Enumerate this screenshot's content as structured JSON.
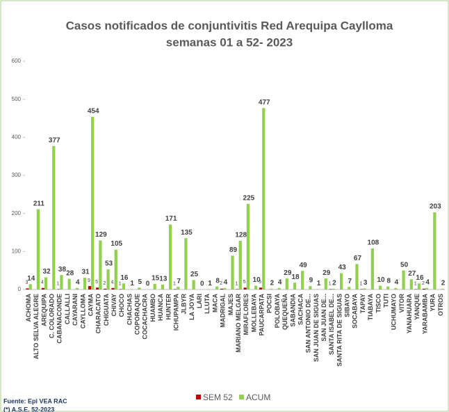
{
  "chart_data": {
    "type": "bar",
    "title": "Casos notificados de conjuntivitis Red Arequipa Caylloma",
    "subtitle": "semanas 01 a 52- 2023",
    "categories": [
      "ACHOMA",
      "ALTO SELVA ALEGRE",
      "AREQUIPA",
      "C. COLORADO",
      "CABANACONDE",
      "CALLALLI",
      "CAYARANI",
      "CAYLLOMA",
      "CAYMA",
      "CHARACATO",
      "CHIGUATA",
      "CHIVAY",
      "CHOCO",
      "CHACHAS",
      "COPORAQUE",
      "COCACHACRA",
      "HUAMBO",
      "HUANCA",
      "HUNTER",
      "ICHUPAMPA",
      "JLBYR",
      "LA JOYA",
      "LARI",
      "LLUTA",
      "MACA",
      "MADRIGAL",
      "MAJES",
      "MARIANO MELGAR",
      "MIRAFLORES",
      "MOLLEBAYA",
      "PAUCARPATA",
      "POCSI",
      "POLOBAYA",
      "QUEQUEÑA",
      "SABANDIA",
      "SACHACA",
      "SAN ANTONIO DE...",
      "SAN JUAN DE SIGUAS",
      "SAN JUAN DE...",
      "SANTA ISABEL DE...",
      "SANTA RITA DE SIGUAS",
      "SIBAYO",
      "SOCABAYA",
      "TAPAY",
      "TIABAYA",
      "TISCO",
      "TUTI",
      "UCHUMAYO",
      "VITOR",
      "YANAHUARA",
      "YANQUE",
      "YARABAMBA",
      "YURA",
      "OTROS"
    ],
    "series": [
      {
        "name": "SEM 52",
        "color": "#c00000",
        "values": [
          3,
          null,
          4,
          null,
          1,
          null,
          null,
          null,
          9,
          5,
          2,
          4,
          1,
          null,
          null,
          null,
          null,
          null,
          null,
          1,
          null,
          null,
          null,
          null,
          null,
          2,
          null,
          1,
          5,
          null,
          5,
          null,
          null,
          null,
          null,
          null,
          null,
          null,
          null,
          1,
          null,
          null,
          null,
          1,
          null,
          null,
          null,
          null,
          null,
          null,
          1,
          2,
          null,
          null
        ]
      },
      {
        "name": "ACUM",
        "color": "#92d050",
        "values": [
          14,
          211,
          32,
          377,
          38,
          28,
          4,
          31,
          454,
          129,
          53,
          105,
          16,
          1,
          5,
          0,
          15,
          13,
          171,
          7,
          135,
          25,
          0,
          1,
          8,
          4,
          89,
          128,
          225,
          10,
          477,
          2,
          4,
          29,
          18,
          49,
          9,
          1,
          29,
          2,
          43,
          7,
          67,
          3,
          108,
          10,
          8,
          4,
          50,
          27,
          16,
          4,
          203,
          2
        ]
      }
    ],
    "ylim": [
      0,
      600
    ],
    "yticks": [
      0,
      100,
      200,
      300,
      400,
      500,
      600
    ],
    "grid": false,
    "source": "Fuente: Epi VEA RAC",
    "note": "(*) A.S.E. 52-2023"
  }
}
